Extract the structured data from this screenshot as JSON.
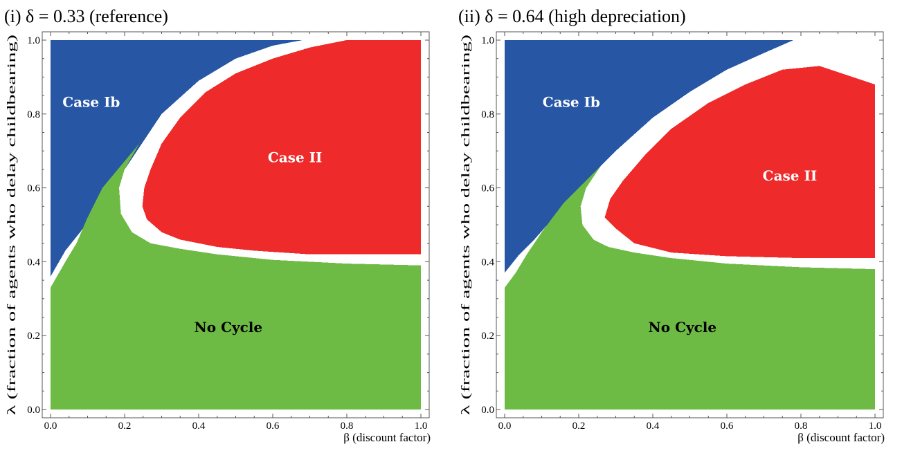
{
  "chart_data": [
    {
      "type": "heatmap",
      "title": "(i) δ = 0.33 (reference)",
      "xlabel": "β (discount factor)",
      "ylabel": "λ (fraction of agents who delay childbearing)",
      "xlim": [
        0,
        1
      ],
      "ylim": [
        0,
        1
      ],
      "xticks": [
        "0.0",
        "0.2",
        "0.4",
        "0.6",
        "0.8",
        "1.0"
      ],
      "yticks": [
        "0.0",
        "0.2",
        "0.4",
        "0.6",
        "0.8",
        "1.0"
      ],
      "grid": false,
      "regions": [
        {
          "label": "Case Ib",
          "color": "#2756a5",
          "label_color": "#ffffff",
          "label_at": [
            0.11,
            0.83
          ],
          "polygon": [
            [
              0,
              1
            ],
            [
              0.68,
              1
            ],
            [
              0.6,
              0.985
            ],
            [
              0.5,
              0.95
            ],
            [
              0.4,
              0.89
            ],
            [
              0.3,
              0.8
            ],
            [
              0.2,
              0.65
            ],
            [
              0.15,
              0.58
            ],
            [
              0.08,
              0.48
            ],
            [
              0.04,
              0.43
            ],
            [
              0,
              0.36
            ]
          ]
        },
        {
          "label": "Case II",
          "color": "#ee2a2a",
          "label_color": "#ffffff",
          "label_at": [
            0.66,
            0.68
          ],
          "polygon": [
            [
              0.8,
              1
            ],
            [
              0.7,
              0.98
            ],
            [
              0.6,
              0.95
            ],
            [
              0.5,
              0.91
            ],
            [
              0.42,
              0.86
            ],
            [
              0.35,
              0.79
            ],
            [
              0.3,
              0.72
            ],
            [
              0.27,
              0.65
            ],
            [
              0.253,
              0.6
            ],
            [
              0.248,
              0.55
            ],
            [
              0.26,
              0.515
            ],
            [
              0.3,
              0.48
            ],
            [
              0.35,
              0.46
            ],
            [
              0.45,
              0.44
            ],
            [
              0.55,
              0.43
            ],
            [
              0.7,
              0.42
            ],
            [
              1,
              0.42
            ],
            [
              1,
              1
            ]
          ]
        },
        {
          "label": "No Cycle",
          "color": "#6dbb45",
          "label_color": "#000000",
          "label_at": [
            0.48,
            0.22
          ],
          "polygon": [
            [
              0,
              0
            ],
            [
              1,
              0
            ],
            [
              1,
              0.39
            ],
            [
              0.8,
              0.395
            ],
            [
              0.6,
              0.405
            ],
            [
              0.45,
              0.42
            ],
            [
              0.35,
              0.435
            ],
            [
              0.27,
              0.45
            ],
            [
              0.22,
              0.48
            ],
            [
              0.19,
              0.53
            ],
            [
              0.185,
              0.6
            ],
            [
              0.2,
              0.65
            ],
            [
              0.24,
              0.72
            ],
            [
              0.14,
              0.6
            ],
            [
              0.1,
              0.52
            ],
            [
              0.07,
              0.45
            ],
            [
              0.04,
              0.4
            ],
            [
              0,
              0.33
            ]
          ]
        }
      ]
    },
    {
      "type": "heatmap",
      "title": "(ii) δ = 0.64 (high depreciation)",
      "xlabel": "β (discount factor)",
      "ylabel": "λ (fraction of agents who delay childbearing)",
      "xlim": [
        0,
        1
      ],
      "ylim": [
        0,
        1
      ],
      "xticks": [
        "0.0",
        "0.2",
        "0.4",
        "0.6",
        "0.8",
        "1.0"
      ],
      "yticks": [
        "0.0",
        "0.2",
        "0.4",
        "0.6",
        "0.8",
        "1.0"
      ],
      "grid": false,
      "regions": [
        {
          "label": "Case Ib",
          "color": "#2756a5",
          "label_color": "#ffffff",
          "label_at": [
            0.18,
            0.83
          ],
          "polygon": [
            [
              0,
              1
            ],
            [
              0.78,
              1
            ],
            [
              0.7,
              0.965
            ],
            [
              0.6,
              0.92
            ],
            [
              0.5,
              0.86
            ],
            [
              0.4,
              0.79
            ],
            [
              0.3,
              0.7
            ],
            [
              0.2,
              0.6
            ],
            [
              0.15,
              0.54
            ],
            [
              0.08,
              0.46
            ],
            [
              0.04,
              0.42
            ],
            [
              0,
              0.37
            ]
          ]
        },
        {
          "label": "Case II",
          "color": "#ee2a2a",
          "label_color": "#ffffff",
          "label_at": [
            0.77,
            0.63
          ],
          "polygon": [
            [
              0.85,
              0.93
            ],
            [
              0.75,
              0.92
            ],
            [
              0.65,
              0.88
            ],
            [
              0.55,
              0.83
            ],
            [
              0.45,
              0.76
            ],
            [
              0.38,
              0.69
            ],
            [
              0.32,
              0.62
            ],
            [
              0.285,
              0.57
            ],
            [
              0.27,
              0.52
            ],
            [
              0.3,
              0.49
            ],
            [
              0.35,
              0.45
            ],
            [
              0.45,
              0.425
            ],
            [
              0.6,
              0.415
            ],
            [
              0.8,
              0.41
            ],
            [
              1,
              0.41
            ],
            [
              1,
              0.88
            ]
          ]
        },
        {
          "label": "No Cycle",
          "color": "#6dbb45",
          "label_color": "#000000",
          "label_at": [
            0.48,
            0.22
          ],
          "polygon": [
            [
              0,
              0
            ],
            [
              1,
              0
            ],
            [
              1,
              0.38
            ],
            [
              0.8,
              0.385
            ],
            [
              0.6,
              0.395
            ],
            [
              0.45,
              0.41
            ],
            [
              0.35,
              0.425
            ],
            [
              0.28,
              0.44
            ],
            [
              0.24,
              0.46
            ],
            [
              0.21,
              0.5
            ],
            [
              0.205,
              0.55
            ],
            [
              0.22,
              0.6
            ],
            [
              0.26,
              0.66
            ],
            [
              0.16,
              0.56
            ],
            [
              0.1,
              0.48
            ],
            [
              0.06,
              0.42
            ],
            [
              0.03,
              0.37
            ],
            [
              0,
              0.33
            ]
          ]
        }
      ]
    }
  ]
}
